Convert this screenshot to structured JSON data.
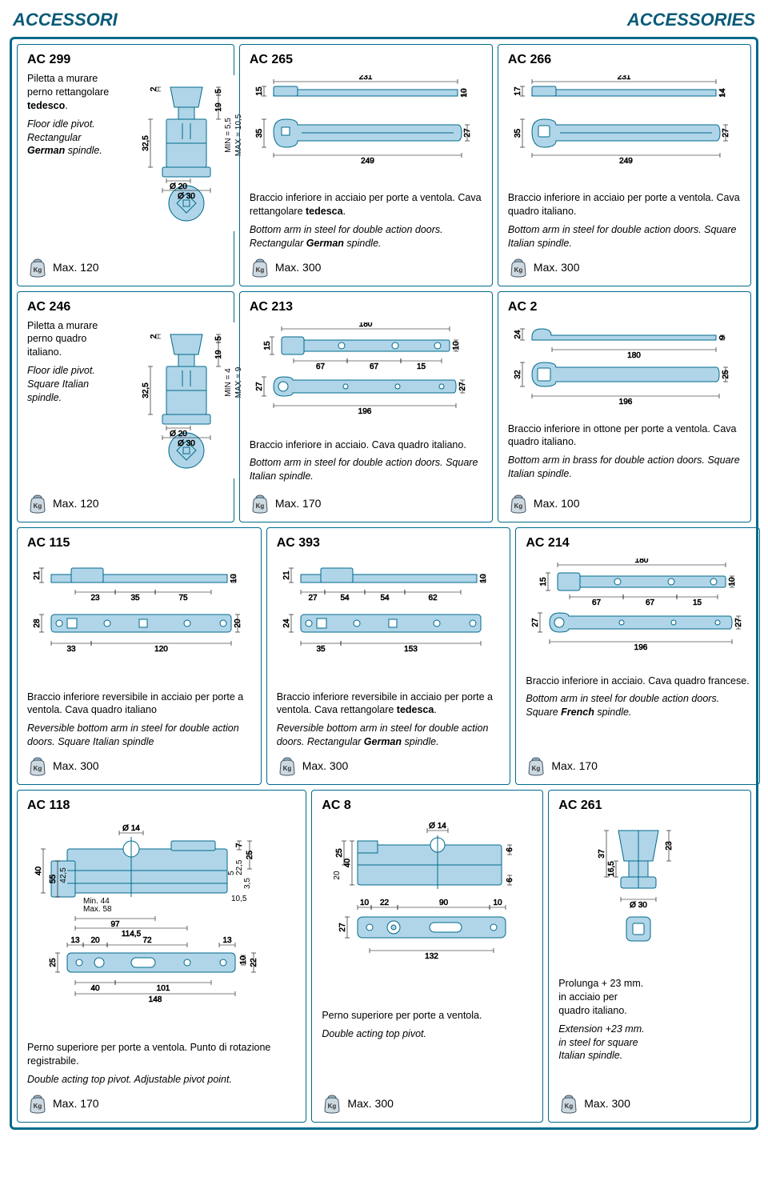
{
  "header": {
    "left": "ACCESSORI",
    "right": "ACCESSORIES"
  },
  "colors": {
    "border": "#006a8c",
    "fill": "#b0d5e8",
    "text": "#000000"
  },
  "rows": [
    {
      "cards": [
        {
          "code": "AC 299",
          "weight": "Max. 120",
          "desc_it": "Piletta a murare perno rettangolare tedesco.",
          "desc_en": "Floor idle pivot. Rectangular German spindle.",
          "diagram_type": "pivot",
          "dims": {
            "d1": "Ø 20",
            "d2": "Ø 30",
            "h": "32,5",
            "w": "2",
            "top": "5",
            "mid": "19",
            "min": "MIN = 5,5",
            "max": "MAX = 10,5"
          }
        },
        {
          "code": "AC 265",
          "weight": "Max. 300",
          "desc_it": "Braccio inferiore in acciaio per porte a ventola. Cava rettangolare tedesca.",
          "desc_en": "Bottom arm in steel for double action doors. Rectangular German spindle.",
          "diagram_type": "arm-long",
          "dims": {
            "top_len": "231",
            "top_h1": "15",
            "top_h2": "10",
            "bot_len": "249",
            "bot_h1": "35",
            "bot_h2": "27"
          },
          "spindle": "rect"
        },
        {
          "code": "AC 266",
          "weight": "Max. 300",
          "desc_it": "Braccio inferiore in acciaio per porte a ventola. Cava quadro italiano.",
          "desc_en": "Bottom arm in steel for double action doors. Square Italian spindle.",
          "diagram_type": "arm-long",
          "dims": {
            "top_len": "231",
            "top_h1": "17",
            "top_h2": "14",
            "bot_len": "249",
            "bot_h1": "35",
            "bot_h2": "27"
          },
          "spindle": "square"
        }
      ]
    },
    {
      "cards": [
        {
          "code": "AC 246",
          "weight": "Max. 120",
          "desc_it": "Piletta a murare perno quadro italiano.",
          "desc_en": "Floor idle pivot. Square Italian spindle.",
          "diagram_type": "pivot",
          "dims": {
            "d1": "Ø 20",
            "d2": "Ø 30",
            "h": "32,5",
            "w": "2",
            "top": "5",
            "mid": "19",
            "min": "MIN = 4",
            "max": "MAX = 9"
          },
          "spindle": "square"
        },
        {
          "code": "AC 213",
          "weight": "Max. 170",
          "desc_it": "Braccio inferiore in acciaio. Cava quadro italiano.",
          "desc_en": "Bottom arm in steel for double action doors. Square Italian spindle.",
          "diagram_type": "arm-holes",
          "dims": {
            "top_len": "180",
            "h1": "15",
            "h2": "10",
            "s1": "67",
            "s2": "67",
            "s3": "15",
            "bot_len": "196",
            "bot_h1": "27",
            "bot_h2": "27"
          }
        },
        {
          "code": "AC 2",
          "weight": "Max. 100",
          "desc_it": "Braccio inferiore in ottone per porte a ventola. Cava quadro italiano.",
          "desc_en": "Bottom arm in brass for double action doors. Square Italian spindle.",
          "diagram_type": "arm-simple",
          "dims": {
            "top_len": "180",
            "h1": "24",
            "h2": "9",
            "bot_len": "196",
            "bot_h1": "32",
            "bot_h2": "25"
          }
        }
      ]
    },
    {
      "cards": [
        {
          "code": "AC 115",
          "weight": "Max. 300",
          "desc_it": "Braccio inferiore reversibile in acciaio per porte a ventola. Cava quadro italiano",
          "desc_en": "Reversible bottom arm in steel for double action doors. Square Italian spindle",
          "diagram_type": "arm-rev",
          "dims": {
            "h1": "21",
            "h2": "10",
            "s1": "23",
            "s2": "35",
            "s3": "75",
            "bot_h1": "28",
            "bot_h2": "20",
            "b1": "33",
            "b2": "120"
          }
        },
        {
          "code": "AC 393",
          "weight": "Max. 300",
          "desc_it": "Braccio inferiore reversibile in acciaio per porte a ventola. Cava rettangolare tedesca.",
          "desc_en": "Reversible bottom arm in steel for double action doors. Rectangular German spindle.",
          "diagram_type": "arm-rev",
          "dims": {
            "h1": "21",
            "h2": "10",
            "s1": "54",
            "s2": "54",
            "s3": "62",
            "s0": "27",
            "bot_h1": "24",
            "b1": "35",
            "b2": "153"
          }
        },
        {
          "code": "AC 214",
          "weight": "Max. 170",
          "desc_it": "Braccio inferiore in acciaio. Cava quadro francese.",
          "desc_en": "Bottom arm in steel for double action doors. Square French spindle.",
          "diagram_type": "arm-holes",
          "dims": {
            "top_len": "180",
            "h1": "15",
            "h2": "10",
            "s1": "67",
            "s2": "67",
            "s3": "15",
            "bot_len": "196",
            "bot_h1": "27",
            "bot_h2": "27"
          }
        }
      ]
    },
    {
      "cards": [
        {
          "code": "AC 118",
          "weight": "Max. 170",
          "desc_it": "Perno superiore per porte a ventola. Punto di rotazione registrabile.",
          "desc_en": "Double acting top pivot. Adjustable pivot point.",
          "diagram_type": "top-pivot-big",
          "dims": {
            "d": "Ø 14",
            "h1": "40",
            "h2": "55",
            "h3": "42,5",
            "minmax": "Min. 44\nMax. 58",
            "w1": "97",
            "w2": "114,5",
            "w3": "10,5",
            "r1": "5",
            "r2": "22,5",
            "r3": "3,5",
            "r4": "7",
            "r5": "25",
            "p1": "13",
            "p2": "20",
            "p3": "72",
            "p4": "13",
            "ph": "25",
            "pr1": "10",
            "pr2": "22",
            "b1": "40",
            "b2": "101",
            "b3": "148"
          }
        },
        {
          "code": "AC 8",
          "weight": "Max. 300",
          "desc_it": "Perno superiore per porte a ventola.",
          "desc_en": "Double acting top pivot.",
          "diagram_type": "top-pivot",
          "dims": {
            "d": "Ø 14",
            "h1": "25",
            "h2": "40",
            "h3": "20",
            "r1": "6",
            "r2": "6",
            "p1": "10",
            "p2": "22",
            "p3": "90",
            "p4": "10",
            "ph": "27",
            "bot": "132"
          }
        },
        {
          "code": "AC 261",
          "weight": "Max. 300",
          "desc_it": "Prolunga + 23 mm. in acciaio per quadro italiano.",
          "desc_en": "Extension +23 mm. in steel for square Italian spindle.",
          "diagram_type": "extension",
          "dims": {
            "h1": "37",
            "h2": "16,5",
            "h3": "23",
            "d": "Ø 30"
          }
        }
      ]
    }
  ]
}
